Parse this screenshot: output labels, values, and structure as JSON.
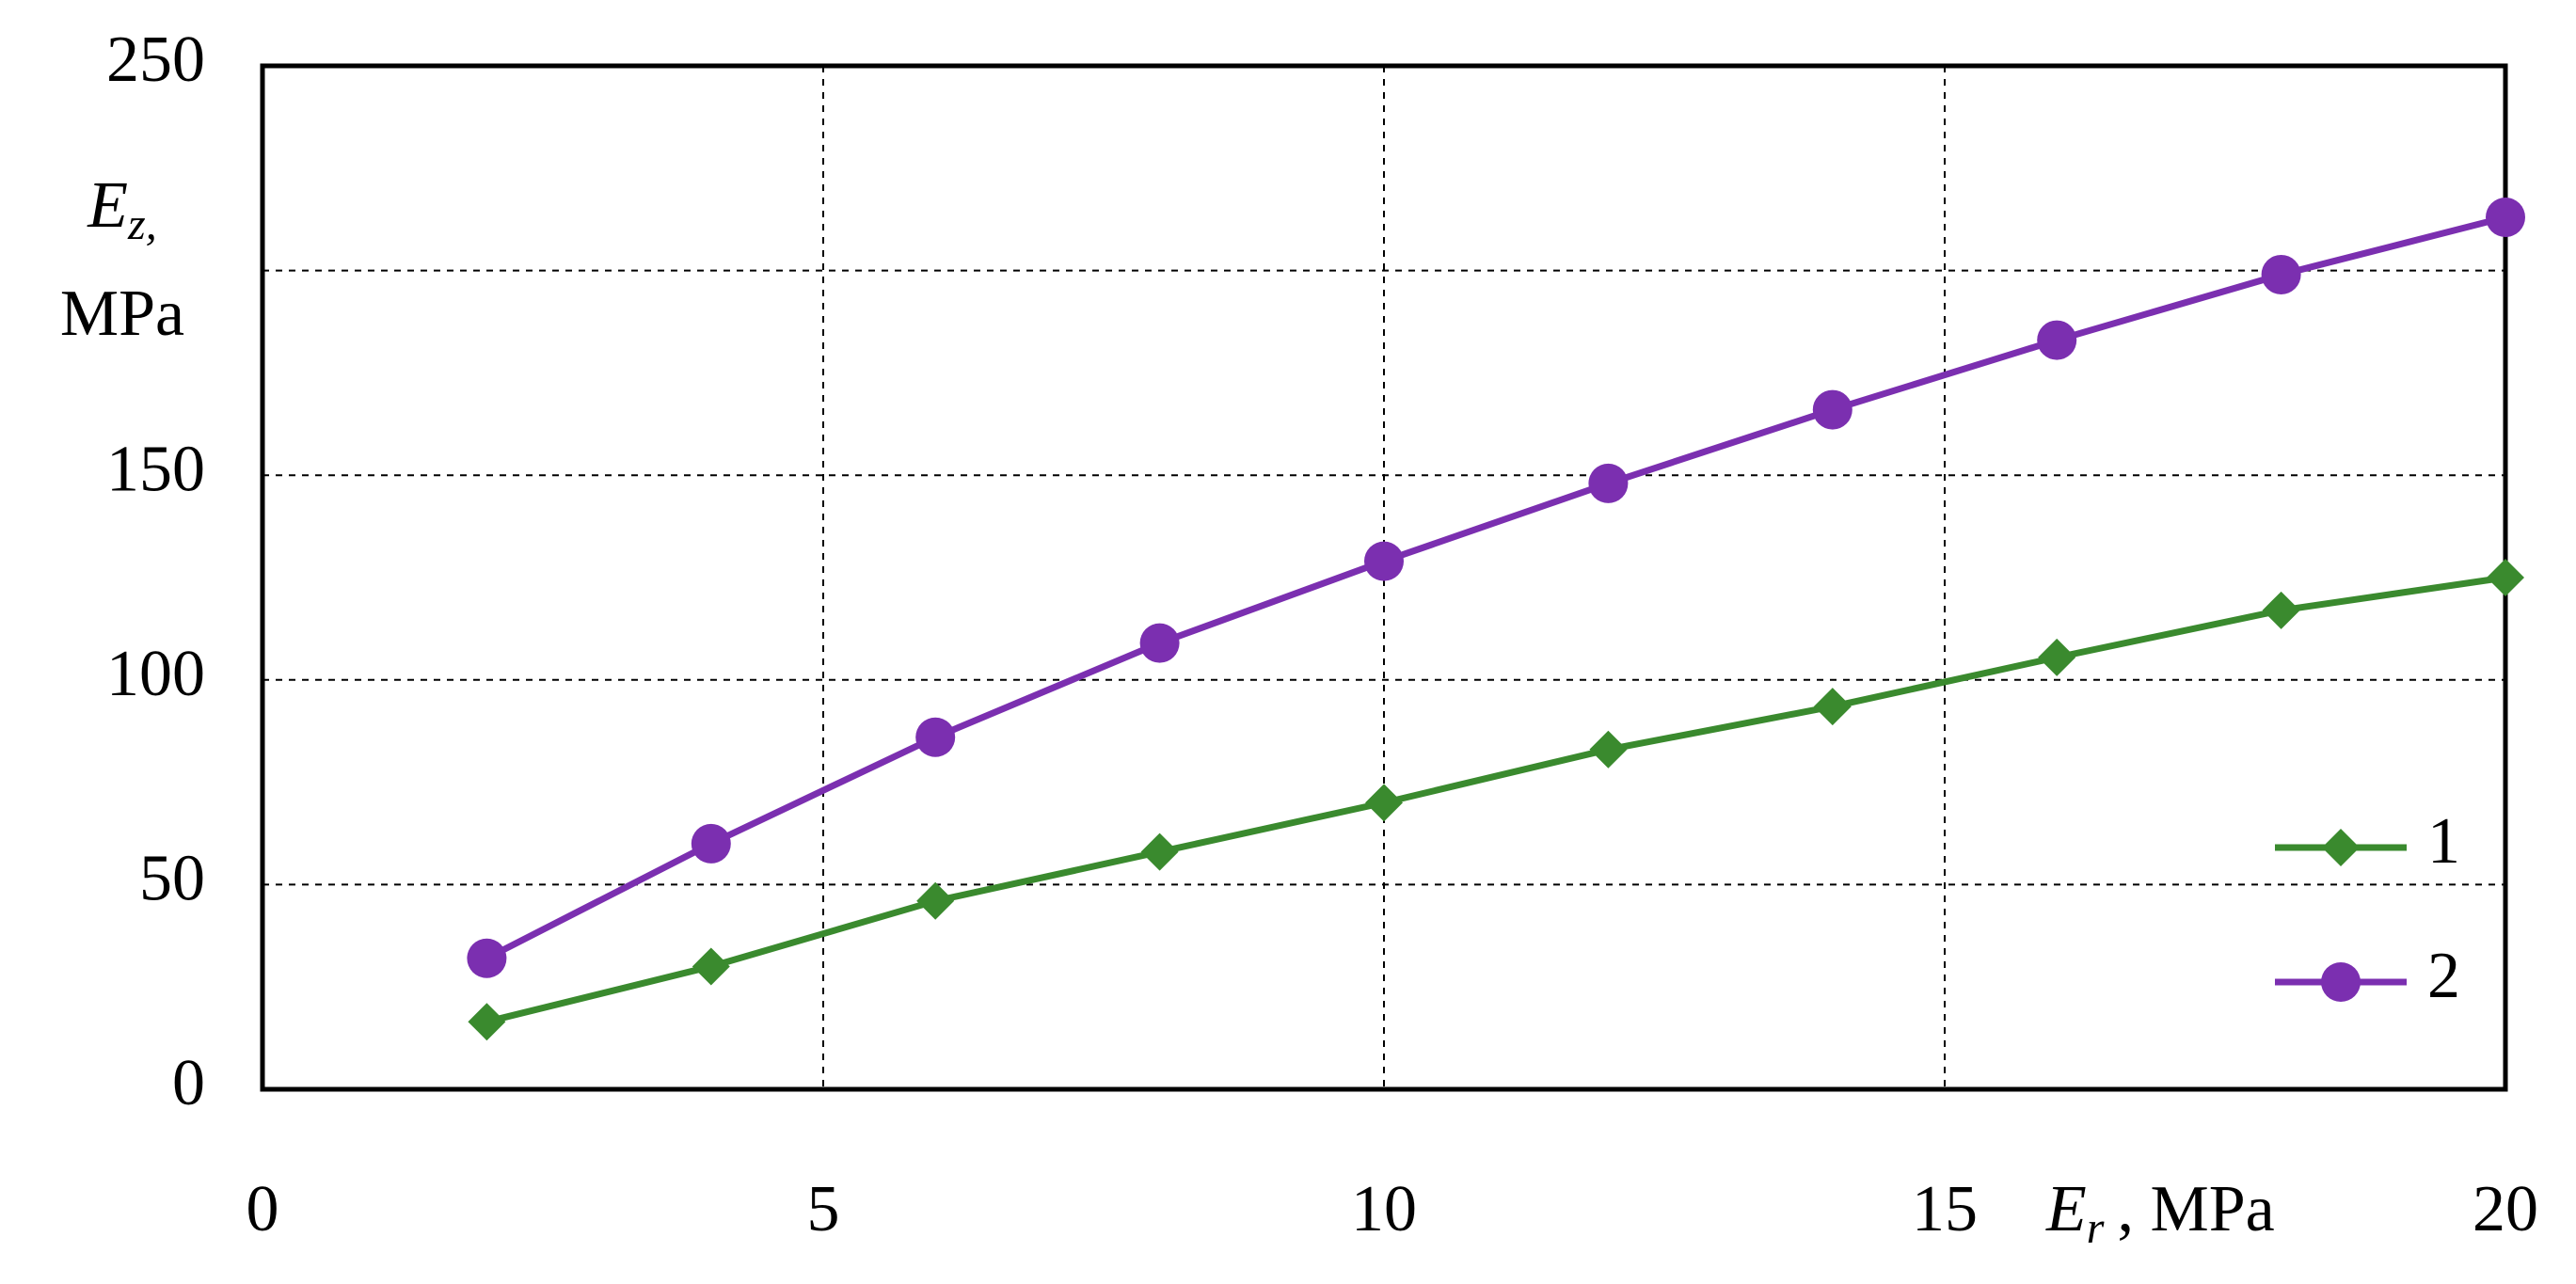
{
  "chart_data": {
    "type": "line",
    "y_label": {
      "symbol": "E",
      "subscript": "z,",
      "unit": "MPa"
    },
    "x_label": {
      "symbol": "E",
      "subscript": "r",
      "unit": ", MPa"
    },
    "x": [
      2,
      4,
      6,
      8,
      10,
      12,
      14,
      16,
      18,
      20
    ],
    "series": [
      {
        "name": "1",
        "color": "#3a8a2e",
        "marker": "diamond",
        "values": [
          16.5,
          30,
          46,
          58,
          70,
          83,
          93.5,
          105.5,
          117,
          125
        ]
      },
      {
        "name": "2",
        "color": "#7b2fb0",
        "marker": "circle",
        "values": [
          32,
          60,
          86,
          109,
          129,
          148,
          166,
          183,
          199,
          213
        ]
      }
    ],
    "xlim": [
      0,
      20
    ],
    "xticks": [
      0,
      5,
      10,
      15,
      20
    ],
    "ylim": [
      0,
      250
    ],
    "yticks": [
      0,
      50,
      100,
      150,
      250
    ],
    "xgrid": [
      5,
      10,
      15
    ],
    "ygrid": [
      50,
      100,
      150,
      200
    ],
    "legend": "lower right"
  }
}
